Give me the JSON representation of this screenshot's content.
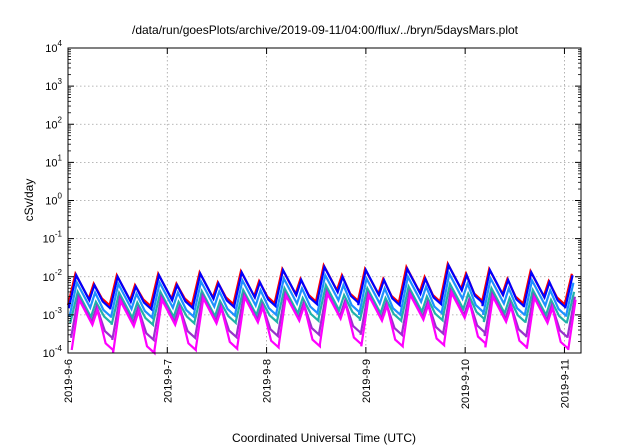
{
  "chart_data": {
    "type": "line",
    "title": "/data/run/goesPlots/archive/2019-09-11/04:00/flux/../bryn/5daysMars.plot",
    "xlabel": "Coordinated Universal Time (UTC)",
    "ylabel": "cSv/day",
    "x_range": [
      "2019-09-06T00:00",
      "2019-09-11T04:00"
    ],
    "y_range": [
      0.0001,
      10000
    ],
    "y_scale": "log",
    "grid": true,
    "legend": "none",
    "x_ticks": [
      {
        "date": "2019-09-06",
        "label": "2019-9-6"
      },
      {
        "date": "2019-09-07",
        "label": "2019-9-7"
      },
      {
        "date": "2019-09-08",
        "label": "2019-9-8"
      },
      {
        "date": "2019-09-09",
        "label": "2019-9-9"
      },
      {
        "date": "2019-09-10",
        "label": "2019-9-10"
      },
      {
        "date": "2019-09-11",
        "label": "2019-9-11"
      }
    ],
    "y_ticks": [
      {
        "value": 0.0001,
        "base": "10",
        "exp": "-4"
      },
      {
        "value": 0.001,
        "base": "10",
        "exp": "-3"
      },
      {
        "value": 0.01,
        "base": "10",
        "exp": "-2"
      },
      {
        "value": 0.1,
        "base": "10",
        "exp": "-1"
      },
      {
        "value": 1,
        "base": "10",
        "exp": "0"
      },
      {
        "value": 10,
        "base": "10",
        "exp": "1"
      },
      {
        "value": 100,
        "base": "10",
        "exp": "2"
      },
      {
        "value": 1000,
        "base": "10",
        "exp": "3"
      },
      {
        "value": 10000,
        "base": "10",
        "exp": "4"
      }
    ],
    "series": [
      {
        "color": "#ff0000",
        "peaks": [
          0.012,
          0.011,
          0.012,
          0.013,
          0.014,
          0.016,
          0.02,
          0.016,
          0.018,
          0.022,
          0.016,
          0.014,
          0.012
        ],
        "troughs": [
          0.0018,
          0.0017,
          0.0018,
          0.0019,
          0.002,
          0.0022,
          0.0024,
          0.0021,
          0.0022,
          0.0024,
          0.002,
          0.0019,
          0.0018
        ]
      },
      {
        "color": "#0000ff",
        "peaks": [
          0.011,
          0.01,
          0.011,
          0.012,
          0.013,
          0.015,
          0.018,
          0.015,
          0.016,
          0.02,
          0.015,
          0.013,
          0.011
        ],
        "troughs": [
          0.0015,
          0.0014,
          0.0015,
          0.0016,
          0.0017,
          0.0019,
          0.0021,
          0.0018,
          0.0019,
          0.0021,
          0.0017,
          0.0016,
          0.0015
        ]
      },
      {
        "color": "#1e90ff",
        "peaks": [
          0.007,
          0.0065,
          0.007,
          0.0075,
          0.008,
          0.009,
          0.011,
          0.009,
          0.01,
          0.012,
          0.009,
          0.008,
          0.007
        ],
        "troughs": [
          0.0009,
          0.00085,
          0.0009,
          0.00095,
          0.001,
          0.0011,
          0.0012,
          0.001,
          0.0011,
          0.0012,
          0.001,
          0.00095,
          0.0009
        ]
      },
      {
        "color": "#20b2aa",
        "peaks": [
          0.004,
          0.0038,
          0.004,
          0.0042,
          0.0045,
          0.005,
          0.006,
          0.005,
          0.0055,
          0.0065,
          0.005,
          0.0045,
          0.004
        ],
        "troughs": [
          0.0006,
          0.00055,
          0.0006,
          0.00062,
          0.00065,
          0.0007,
          0.0008,
          0.0007,
          0.00072,
          0.0008,
          0.00065,
          0.00062,
          0.0006
        ]
      },
      {
        "color": "#9932cc",
        "peaks": [
          0.003,
          0.0028,
          0.003,
          0.0032,
          0.0034,
          0.0037,
          0.0042,
          0.0037,
          0.004,
          0.0045,
          0.0036,
          0.0033,
          0.003
        ],
        "troughs": [
          0.00025,
          0.00022,
          0.00025,
          0.00026,
          0.00028,
          0.0003,
          0.00034,
          0.0003,
          0.00032,
          0.00035,
          0.00028,
          0.00026,
          0.00025
        ]
      },
      {
        "color": "#ff00ff",
        "peaks": [
          0.0025,
          0.0023,
          0.0025,
          0.0027,
          0.0029,
          0.0032,
          0.0036,
          0.0032,
          0.0034,
          0.0038,
          0.003,
          0.0028,
          0.0025
        ],
        "troughs": [
          0.00012,
          0.0001,
          0.00012,
          0.00013,
          0.00014,
          0.00015,
          0.00017,
          0.00015,
          0.00016,
          0.00018,
          0.00014,
          0.00013,
          0.00012
        ]
      }
    ]
  }
}
